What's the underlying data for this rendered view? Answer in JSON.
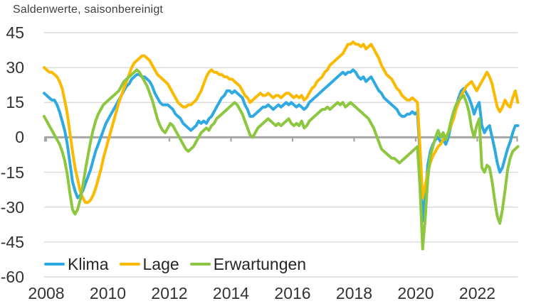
{
  "title": "Saldenwerte, saisonbereinigt",
  "colors": {
    "klima": "#2FA9E1",
    "lage": "#FBBA00",
    "erwartungen": "#8DC63F",
    "grid": "#D9D9D9",
    "zero_line": "#A6A6A6",
    "axis_text": "#333333",
    "title_text": "#404040"
  },
  "legend": {
    "items": [
      {
        "label": "Klima",
        "color": "#2FA9E1"
      },
      {
        "label": "Lage",
        "color": "#FBBA00"
      },
      {
        "label": "Erwartungen",
        "color": "#8DC63F"
      }
    ]
  },
  "chart_data": {
    "type": "line",
    "title": "Saldenwerte, saisonbereinigt",
    "frequency": "monthly",
    "x_start": "2008-01",
    "x_end": "2023-05",
    "xticklabels": [
      "2008",
      "2010",
      "2012",
      "2014",
      "2016",
      "2018",
      "2020",
      "2022"
    ],
    "yticks": [
      45,
      30,
      15,
      0,
      -15,
      -30,
      -45,
      -60
    ],
    "ylim": [
      -60,
      45
    ],
    "grid": "horizontal-only",
    "legend_position": "bottom-left",
    "series": [
      {
        "name": "Klima",
        "color": "#2FA9E1",
        "values": [
          19,
          18,
          17,
          16,
          16,
          14,
          11,
          7,
          3,
          -3,
          -11,
          -19,
          -23,
          -26,
          -25,
          -23,
          -20,
          -17,
          -14,
          -10,
          -6,
          -3,
          0,
          3,
          6,
          8,
          10,
          12,
          14,
          16,
          18,
          20,
          22,
          23,
          25,
          26,
          27,
          27,
          26,
          26,
          25,
          24,
          22,
          19,
          17,
          15,
          14,
          14,
          14,
          13,
          12,
          10,
          9,
          8,
          6,
          5,
          4,
          3,
          4,
          5,
          7,
          6,
          7,
          6,
          8,
          9,
          11,
          13,
          15,
          17,
          18,
          20,
          20,
          19,
          20,
          19,
          18,
          17,
          14,
          12,
          9,
          9,
          10,
          11,
          12,
          13,
          13,
          14,
          13,
          12,
          13,
          14,
          13,
          14,
          15,
          14,
          15,
          14,
          13,
          14,
          13,
          12,
          13,
          15,
          16,
          17,
          18,
          19,
          20,
          21,
          22,
          23,
          24,
          25,
          26,
          27,
          28,
          27,
          28,
          28,
          29,
          28,
          26,
          25,
          26,
          24,
          25,
          26,
          24,
          22,
          20,
          19,
          17,
          16,
          15,
          14,
          13,
          12,
          10,
          9,
          9,
          10,
          10,
          11,
          10,
          11,
          -8,
          -36,
          -26,
          -12,
          -6,
          -3,
          -1,
          0,
          -2,
          -1,
          -3,
          0,
          5,
          9,
          13,
          17,
          20,
          21,
          19,
          17,
          14,
          10,
          13,
          15,
          5,
          2,
          4,
          5,
          0,
          -5,
          -11,
          -15,
          -13,
          -9,
          -5,
          -2,
          2,
          5,
          5
        ]
      },
      {
        "name": "Lage",
        "color": "#FBBA00",
        "values": [
          30,
          29,
          28,
          28,
          27,
          26,
          24,
          21,
          16,
          10,
          2,
          -6,
          -13,
          -18,
          -23,
          -26,
          -28,
          -28,
          -27,
          -25,
          -22,
          -18,
          -14,
          -9,
          -5,
          -1,
          3,
          7,
          11,
          15,
          18,
          21,
          24,
          27,
          30,
          32,
          33,
          34,
          35,
          35,
          34,
          33,
          31,
          29,
          27,
          26,
          25,
          24,
          23,
          21,
          19,
          17,
          15,
          14,
          13,
          13,
          14,
          14,
          15,
          16,
          18,
          20,
          23,
          26,
          28,
          29,
          28,
          28,
          27,
          27,
          26,
          26,
          25,
          25,
          24,
          23,
          22,
          20,
          18,
          17,
          15,
          16,
          17,
          18,
          19,
          18,
          18,
          19,
          18,
          17,
          18,
          18,
          17,
          18,
          19,
          19,
          18,
          17,
          18,
          17,
          18,
          16,
          17,
          19,
          21,
          22,
          24,
          25,
          26,
          28,
          29,
          31,
          32,
          33,
          34,
          35,
          36,
          38,
          40,
          40,
          41,
          40,
          40,
          39,
          40,
          38,
          39,
          40,
          38,
          36,
          34,
          31,
          29,
          27,
          26,
          25,
          23,
          21,
          20,
          18,
          17,
          16,
          16,
          17,
          16,
          15,
          -5,
          -26,
          -21,
          -15,
          -11,
          -8,
          -6,
          -4,
          -3,
          -1,
          0,
          2,
          5,
          8,
          12,
          15,
          18,
          20,
          22,
          23,
          24,
          22,
          20,
          22,
          24,
          26,
          28,
          26,
          23,
          18,
          13,
          11,
          13,
          16,
          14,
          13,
          17,
          20,
          15
        ]
      },
      {
        "name": "Erwartungen",
        "color": "#8DC63F",
        "values": [
          9,
          7,
          5,
          3,
          1,
          -1,
          -3,
          -6,
          -10,
          -16,
          -24,
          -31,
          -33,
          -31,
          -27,
          -21,
          -14,
          -8,
          -2,
          3,
          7,
          10,
          12,
          14,
          15,
          16,
          17,
          18,
          19,
          20,
          22,
          24,
          25,
          26,
          27,
          28,
          29,
          28,
          26,
          24,
          22,
          19,
          16,
          12,
          8,
          5,
          3,
          2,
          4,
          6,
          5,
          3,
          1,
          -1,
          -3,
          -5,
          -6,
          -5,
          -4,
          -2,
          0,
          2,
          3,
          4,
          3,
          5,
          6,
          8,
          9,
          10,
          11,
          12,
          13,
          14,
          15,
          14,
          12,
          10,
          7,
          4,
          1,
          0,
          2,
          4,
          5,
          6,
          7,
          8,
          7,
          6,
          5,
          6,
          5,
          6,
          7,
          8,
          6,
          5,
          6,
          5,
          7,
          4,
          5,
          7,
          8,
          9,
          10,
          11,
          12,
          12,
          13,
          12,
          13,
          14,
          15,
          14,
          15,
          13,
          14,
          15,
          14,
          13,
          12,
          11,
          10,
          9,
          8,
          6,
          4,
          1,
          -2,
          -5,
          -6,
          -7,
          -8,
          -9,
          -9,
          -10,
          -11,
          -10,
          -9,
          -8,
          -7,
          -6,
          -5,
          -4,
          -22,
          -48,
          -35,
          -18,
          -8,
          -4,
          0,
          3,
          0,
          2,
          -1,
          2,
          7,
          11,
          14,
          16,
          17,
          18,
          15,
          11,
          4,
          0,
          5,
          8,
          -13,
          -15,
          -12,
          -13,
          -19,
          -27,
          -34,
          -37,
          -31,
          -23,
          -14,
          -9,
          -6,
          -5,
          -4
        ]
      }
    ]
  }
}
